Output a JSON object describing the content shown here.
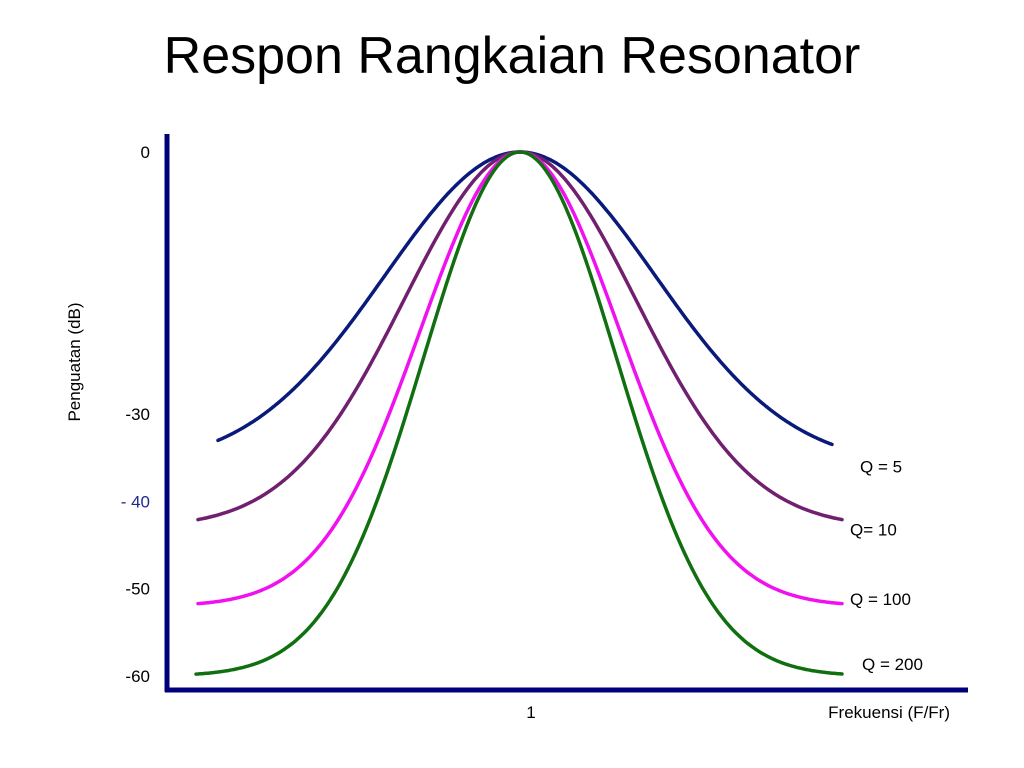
{
  "slide": {
    "title": "Respon Rangkaian Resonator"
  },
  "chart_data": {
    "type": "line",
    "title": "",
    "xlabel": "Frekuensi (F/Fr)",
    "ylabel": "Penguatan (dB)",
    "x_ticks": [
      {
        "label": "1",
        "value": 1
      }
    ],
    "y_ticks": [
      {
        "label": "0",
        "value": 0,
        "color": "#000000"
      },
      {
        "label": "-30",
        "value": -30,
        "color": "#000000"
      },
      {
        "label": "- 40",
        "value": -40,
        "color": "#1F2B8F"
      },
      {
        "label": "-50",
        "value": -50,
        "color": "#000000"
      },
      {
        "label": "-60",
        "value": -60,
        "color": "#000000"
      }
    ],
    "ylim": [
      -60,
      0
    ],
    "grid": false,
    "axis_color": "#00007A",
    "series": [
      {
        "name": "Q = 5",
        "color": "#0A1A7A",
        "peak": 0,
        "floor": -36,
        "spread": 0.42
      },
      {
        "name": "Q= 10",
        "color": "#70206E",
        "peak": 0,
        "floor": -43,
        "spread": 0.36
      },
      {
        "name": "Q = 100",
        "color": "#F010F0",
        "peak": 0,
        "floor": -52,
        "spread": 0.31
      },
      {
        "name": "Q = 200",
        "color": "#107010",
        "peak": 0,
        "floor": -60,
        "spread": 0.3
      }
    ]
  }
}
